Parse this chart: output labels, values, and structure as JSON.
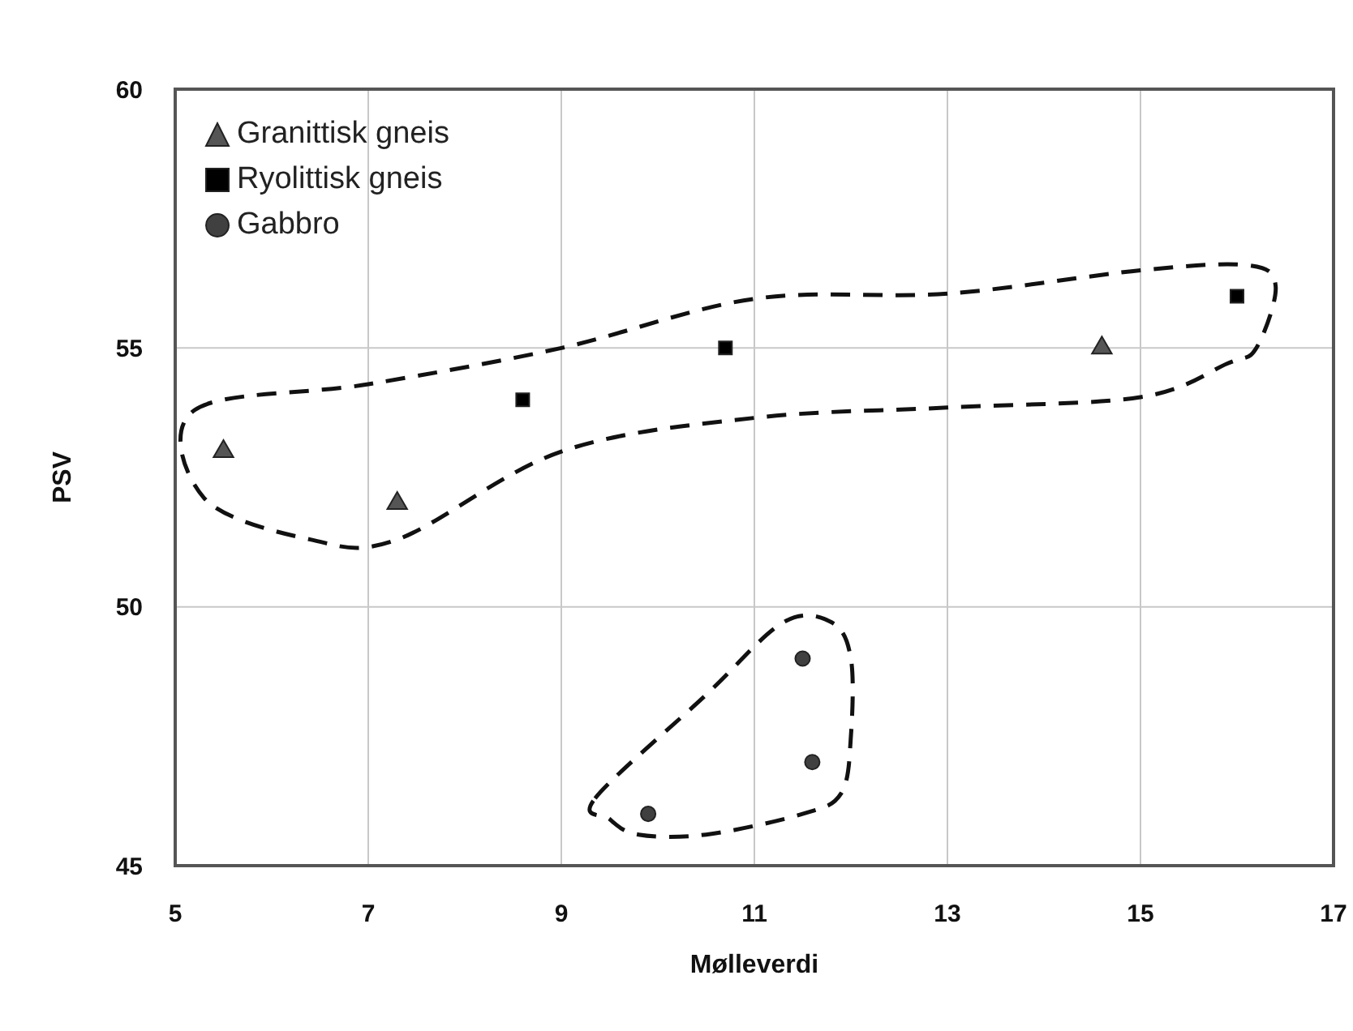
{
  "chart_data": {
    "type": "scatter",
    "xlabel": "Mølleverdi",
    "ylabel": "PSV",
    "xlim": [
      5,
      17
    ],
    "xticks": [
      5,
      7,
      9,
      11,
      13,
      15,
      17
    ],
    "ylim": [
      45,
      60
    ],
    "yticks": [
      45,
      50,
      55,
      60
    ],
    "grid": true,
    "legend": "top left",
    "series": [
      {
        "name": "Granittisk gneis",
        "color": "#555555",
        "marker": "triangle",
        "x": [
          5.5,
          7.3,
          14.6
        ],
        "values": [
          53,
          52,
          55
        ]
      },
      {
        "name": "Ryolittisk gneis",
        "color": "#000000",
        "marker": "square",
        "x": [
          8.6,
          10.7,
          16.0
        ],
        "values": [
          54,
          55,
          56
        ]
      },
      {
        "name": "Gabbro",
        "color": "#404040",
        "marker": "circle",
        "x": [
          9.9,
          11.5,
          11.6
        ],
        "values": [
          46,
          49,
          47
        ]
      }
    ]
  }
}
